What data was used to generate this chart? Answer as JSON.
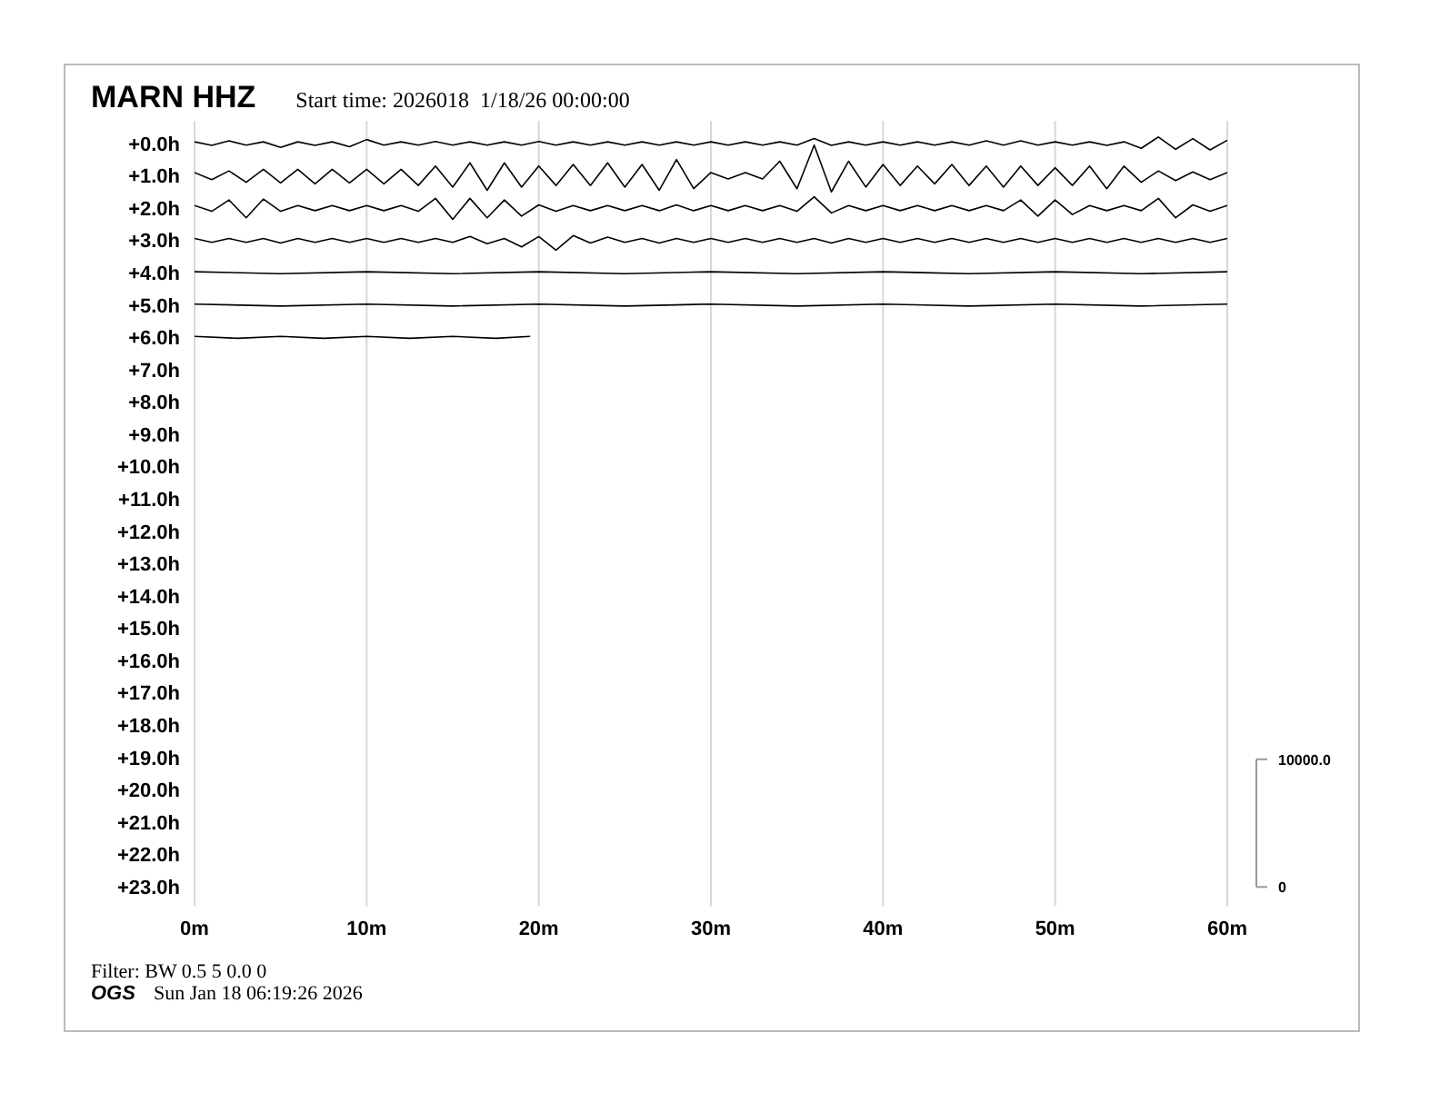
{
  "chart_data": {
    "type": "line",
    "title": "MARN HHZ",
    "subtitle": "Start time: 2026018  1/18/26 00:00:00",
    "annotations": [
      "Filter: BW 0.5 5 0.0 0",
      "OGS",
      "Sun Jan 18 06:19:26 2026"
    ],
    "x": [
      0,
      1,
      2,
      3,
      4,
      5,
      6,
      7,
      8,
      9,
      10,
      11,
      12,
      13,
      14,
      15,
      16,
      17,
      18,
      19,
      20,
      21,
      22,
      23,
      24,
      25,
      26,
      27,
      28,
      29,
      30,
      31,
      32,
      33,
      34,
      35,
      36,
      37,
      38,
      39,
      40,
      41,
      42,
      43,
      44,
      45,
      46,
      47,
      48,
      49,
      50,
      51,
      52,
      53,
      54,
      55,
      56,
      57,
      58,
      59,
      60
    ],
    "series": [
      {
        "color": "#000000",
        "values": [
          -0.05,
          0.06,
          -0.08,
          0.05,
          -0.05,
          0.12,
          -0.05,
          0.06,
          -0.05,
          0.1,
          -0.12,
          0.05,
          -0.05,
          0.05,
          -0.06,
          0.05,
          -0.05,
          0.05,
          -0.05,
          0.05,
          -0.06,
          0.05,
          -0.05,
          0.05,
          -0.05,
          0.05,
          -0.05,
          0.05,
          -0.05,
          0.05,
          -0.05,
          0.05,
          -0.05,
          0.05,
          -0.05,
          0.05,
          -0.15,
          0.06,
          -0.05,
          0.05,
          -0.05,
          0.05,
          -0.05,
          0.05,
          -0.05,
          0.05,
          -0.08,
          0.05,
          -0.08,
          0.05,
          -0.05,
          0.05,
          -0.05,
          0.06,
          -0.05,
          0.15,
          -0.2,
          0.18,
          -0.15,
          0.2,
          -0.1
        ]
      },
      {
        "color": "#000000",
        "values": [
          0.9,
          1.12,
          0.85,
          1.2,
          0.8,
          1.22,
          0.8,
          1.25,
          0.8,
          1.22,
          0.8,
          1.25,
          0.8,
          1.3,
          0.7,
          1.35,
          0.6,
          1.45,
          0.6,
          1.35,
          0.7,
          1.3,
          0.65,
          1.3,
          0.6,
          1.35,
          0.65,
          1.45,
          0.5,
          1.4,
          0.9,
          1.1,
          0.9,
          1.1,
          0.55,
          1.4,
          0.05,
          1.5,
          0.55,
          1.35,
          0.65,
          1.3,
          0.7,
          1.25,
          0.65,
          1.3,
          0.7,
          1.35,
          0.7,
          1.3,
          0.75,
          1.3,
          0.7,
          1.4,
          0.7,
          1.2,
          0.85,
          1.15,
          0.88,
          1.12,
          0.9
        ]
      },
      {
        "color": "#000000",
        "values": [
          1.92,
          2.1,
          1.75,
          2.3,
          1.72,
          2.1,
          1.92,
          2.08,
          1.92,
          2.08,
          1.92,
          2.08,
          1.92,
          2.1,
          1.7,
          2.35,
          1.7,
          2.3,
          1.75,
          2.25,
          1.9,
          2.1,
          1.92,
          2.08,
          1.92,
          2.08,
          1.92,
          2.08,
          1.9,
          2.08,
          1.92,
          2.08,
          1.92,
          2.08,
          1.92,
          2.1,
          1.65,
          2.15,
          1.92,
          2.08,
          1.92,
          2.08,
          1.92,
          2.08,
          1.92,
          2.08,
          1.92,
          2.08,
          1.75,
          2.25,
          1.75,
          2.2,
          1.92,
          2.08,
          1.92,
          2.08,
          1.7,
          2.3,
          1.9,
          2.1,
          1.92
        ]
      },
      {
        "color": "#000000",
        "values": [
          2.94,
          3.06,
          2.94,
          3.06,
          2.94,
          3.08,
          2.94,
          3.06,
          2.94,
          3.06,
          2.94,
          3.06,
          2.94,
          3.06,
          2.94,
          3.06,
          2.88,
          3.1,
          2.94,
          3.2,
          2.88,
          3.3,
          2.85,
          3.08,
          2.9,
          3.06,
          2.94,
          3.08,
          2.94,
          3.06,
          2.94,
          3.06,
          2.94,
          3.06,
          2.94,
          3.06,
          2.94,
          3.08,
          2.94,
          3.06,
          2.94,
          3.06,
          2.94,
          3.06,
          2.94,
          3.06,
          2.94,
          3.06,
          2.94,
          3.06,
          2.94,
          3.06,
          2.94,
          3.06,
          2.94,
          3.06,
          2.94,
          3.06,
          2.94,
          3.06,
          2.94
        ]
      },
      {
        "color": "#000000",
        "x": [
          0,
          5,
          10,
          15,
          20,
          25,
          30,
          35,
          40,
          45,
          50,
          55,
          60
        ],
        "values": [
          3.97,
          4.03,
          3.97,
          4.03,
          3.97,
          4.03,
          3.97,
          4.03,
          3.97,
          4.03,
          3.97,
          4.03,
          3.97
        ]
      },
      {
        "color": "#000000",
        "x": [
          0,
          5,
          10,
          15,
          20,
          25,
          30,
          35,
          40,
          45,
          50,
          55,
          60
        ],
        "values": [
          4.97,
          5.03,
          4.97,
          5.03,
          4.97,
          5.03,
          4.97,
          5.03,
          4.97,
          5.03,
          4.97,
          5.03,
          4.97
        ]
      },
      {
        "color": "#000000",
        "x": [
          0,
          2.5,
          5,
          7.5,
          10,
          12.5,
          15,
          17.5,
          19.5
        ],
        "values": [
          5.97,
          6.03,
          5.97,
          6.03,
          5.97,
          6.03,
          5.97,
          6.03,
          5.97
        ]
      }
    ],
    "xlim": [
      0,
      60
    ],
    "xticks": [
      {
        "value": 0,
        "label": "0m"
      },
      {
        "value": 10,
        "label": "10m"
      },
      {
        "value": 20,
        "label": "20m"
      },
      {
        "value": 30,
        "label": "30m"
      },
      {
        "value": 40,
        "label": "40m"
      },
      {
        "value": 50,
        "label": "50m"
      },
      {
        "value": 60,
        "label": "60m"
      }
    ],
    "ylim": [
      23.6,
      -0.7
    ],
    "yticks": [
      {
        "value": 0,
        "label": "+0.0h"
      },
      {
        "value": 1,
        "label": "+1.0h"
      },
      {
        "value": 2,
        "label": "+2.0h"
      },
      {
        "value": 3,
        "label": "+3.0h"
      },
      {
        "value": 4,
        "label": "+4.0h"
      },
      {
        "value": 5,
        "label": "+5.0h"
      },
      {
        "value": 6,
        "label": "+6.0h"
      },
      {
        "value": 7,
        "label": "+7.0h"
      },
      {
        "value": 8,
        "label": "+8.0h"
      },
      {
        "value": 9,
        "label": "+9.0h"
      },
      {
        "value": 10,
        "label": "+10.0h"
      },
      {
        "value": 11,
        "label": "+11.0h"
      },
      {
        "value": 12,
        "label": "+12.0h"
      },
      {
        "value": 13,
        "label": "+13.0h"
      },
      {
        "value": 14,
        "label": "+14.0h"
      },
      {
        "value": 15,
        "label": "+15.0h"
      },
      {
        "value": 16,
        "label": "+16.0h"
      },
      {
        "value": 17,
        "label": "+17.0h"
      },
      {
        "value": 18,
        "label": "+18.0h"
      },
      {
        "value": 19,
        "label": "+19.0h"
      },
      {
        "value": 20,
        "label": "+20.0h"
      },
      {
        "value": 21,
        "label": "+21.0h"
      },
      {
        "value": 22,
        "label": "+22.0h"
      },
      {
        "value": 23,
        "label": "+23.0h"
      }
    ],
    "y2lim": [
      -1500,
      60000
    ],
    "y2ticks": [
      0,
      {
        "value": 10000,
        "label": "10000.0"
      }
    ],
    "grid": "x"
  }
}
